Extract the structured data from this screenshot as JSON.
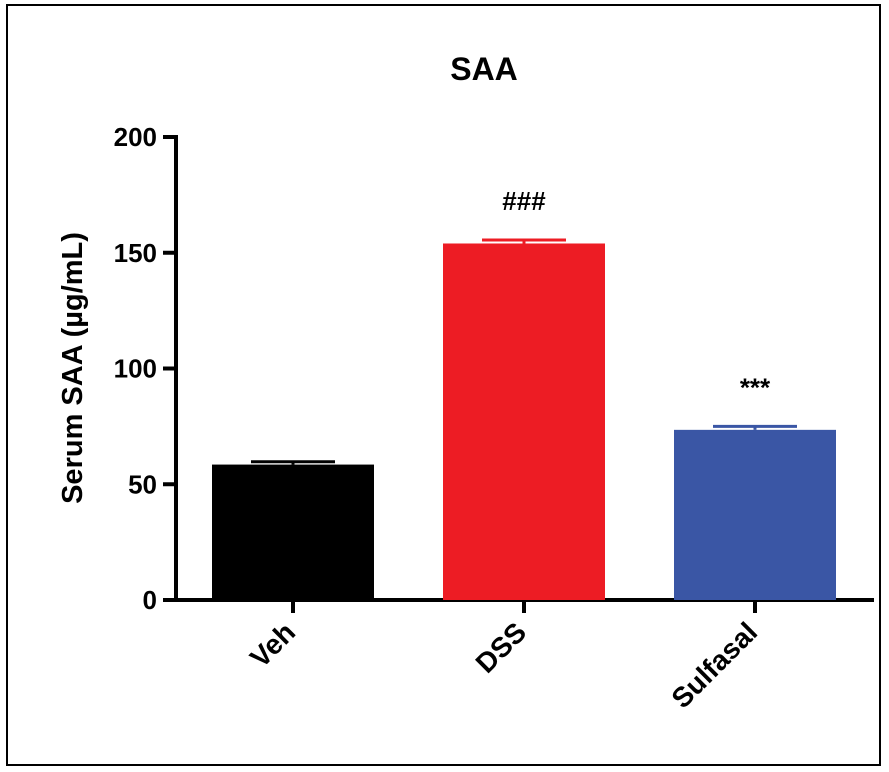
{
  "chart_data": {
    "type": "bar",
    "title": "SAA",
    "ylabel": "Serum SAA (µg/mL)",
    "xlabel": "",
    "ylim": [
      0,
      200
    ],
    "yticks": [
      0,
      50,
      100,
      150,
      200
    ],
    "categories": [
      "Veh",
      "DSS",
      "Sulfasal"
    ],
    "values": [
      58.5,
      154,
      73.5
    ],
    "errors": [
      1.2,
      1.5,
      1.5
    ],
    "colors": [
      "#000000",
      "#ed1c24",
      "#3a56a5"
    ],
    "annotations": [
      "",
      "###",
      "***"
    ],
    "grid": false,
    "legend": "none"
  }
}
